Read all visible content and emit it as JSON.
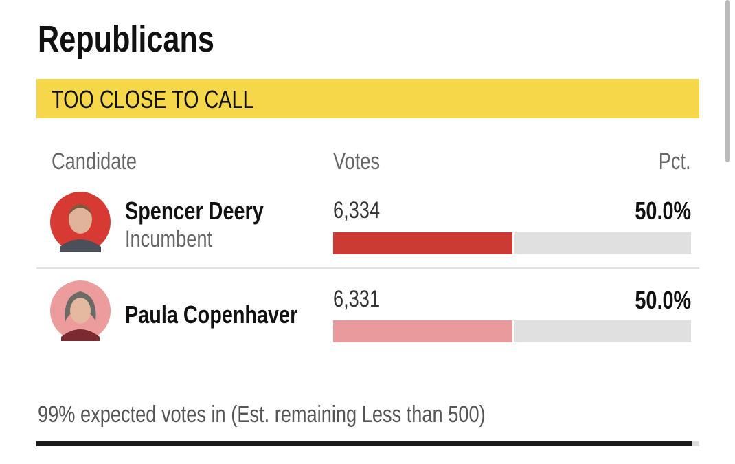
{
  "header": {
    "title": "Republicans",
    "status": "TOO CLOSE TO CALL"
  },
  "table": {
    "columns": [
      "Candidate",
      "Votes",
      "Pct."
    ],
    "rows": [
      {
        "name": "Spencer Deery",
        "note": "Incumbent",
        "votes": "6,334",
        "pct": {
          "value": 50.0,
          "label": "50.0%"
        },
        "bar_color": "#cc3a34",
        "photo_color": "#d63a32"
      },
      {
        "name": "Paula Copenhaver",
        "votes": "6,331",
        "pct": {
          "value": 50.0,
          "label": "50.0%"
        },
        "bar_color": "#e99a9c",
        "photo_color": "#ec9c9c"
      }
    ]
  },
  "footer": "99% expected votes in (Est. remaining Less than 500)"
}
